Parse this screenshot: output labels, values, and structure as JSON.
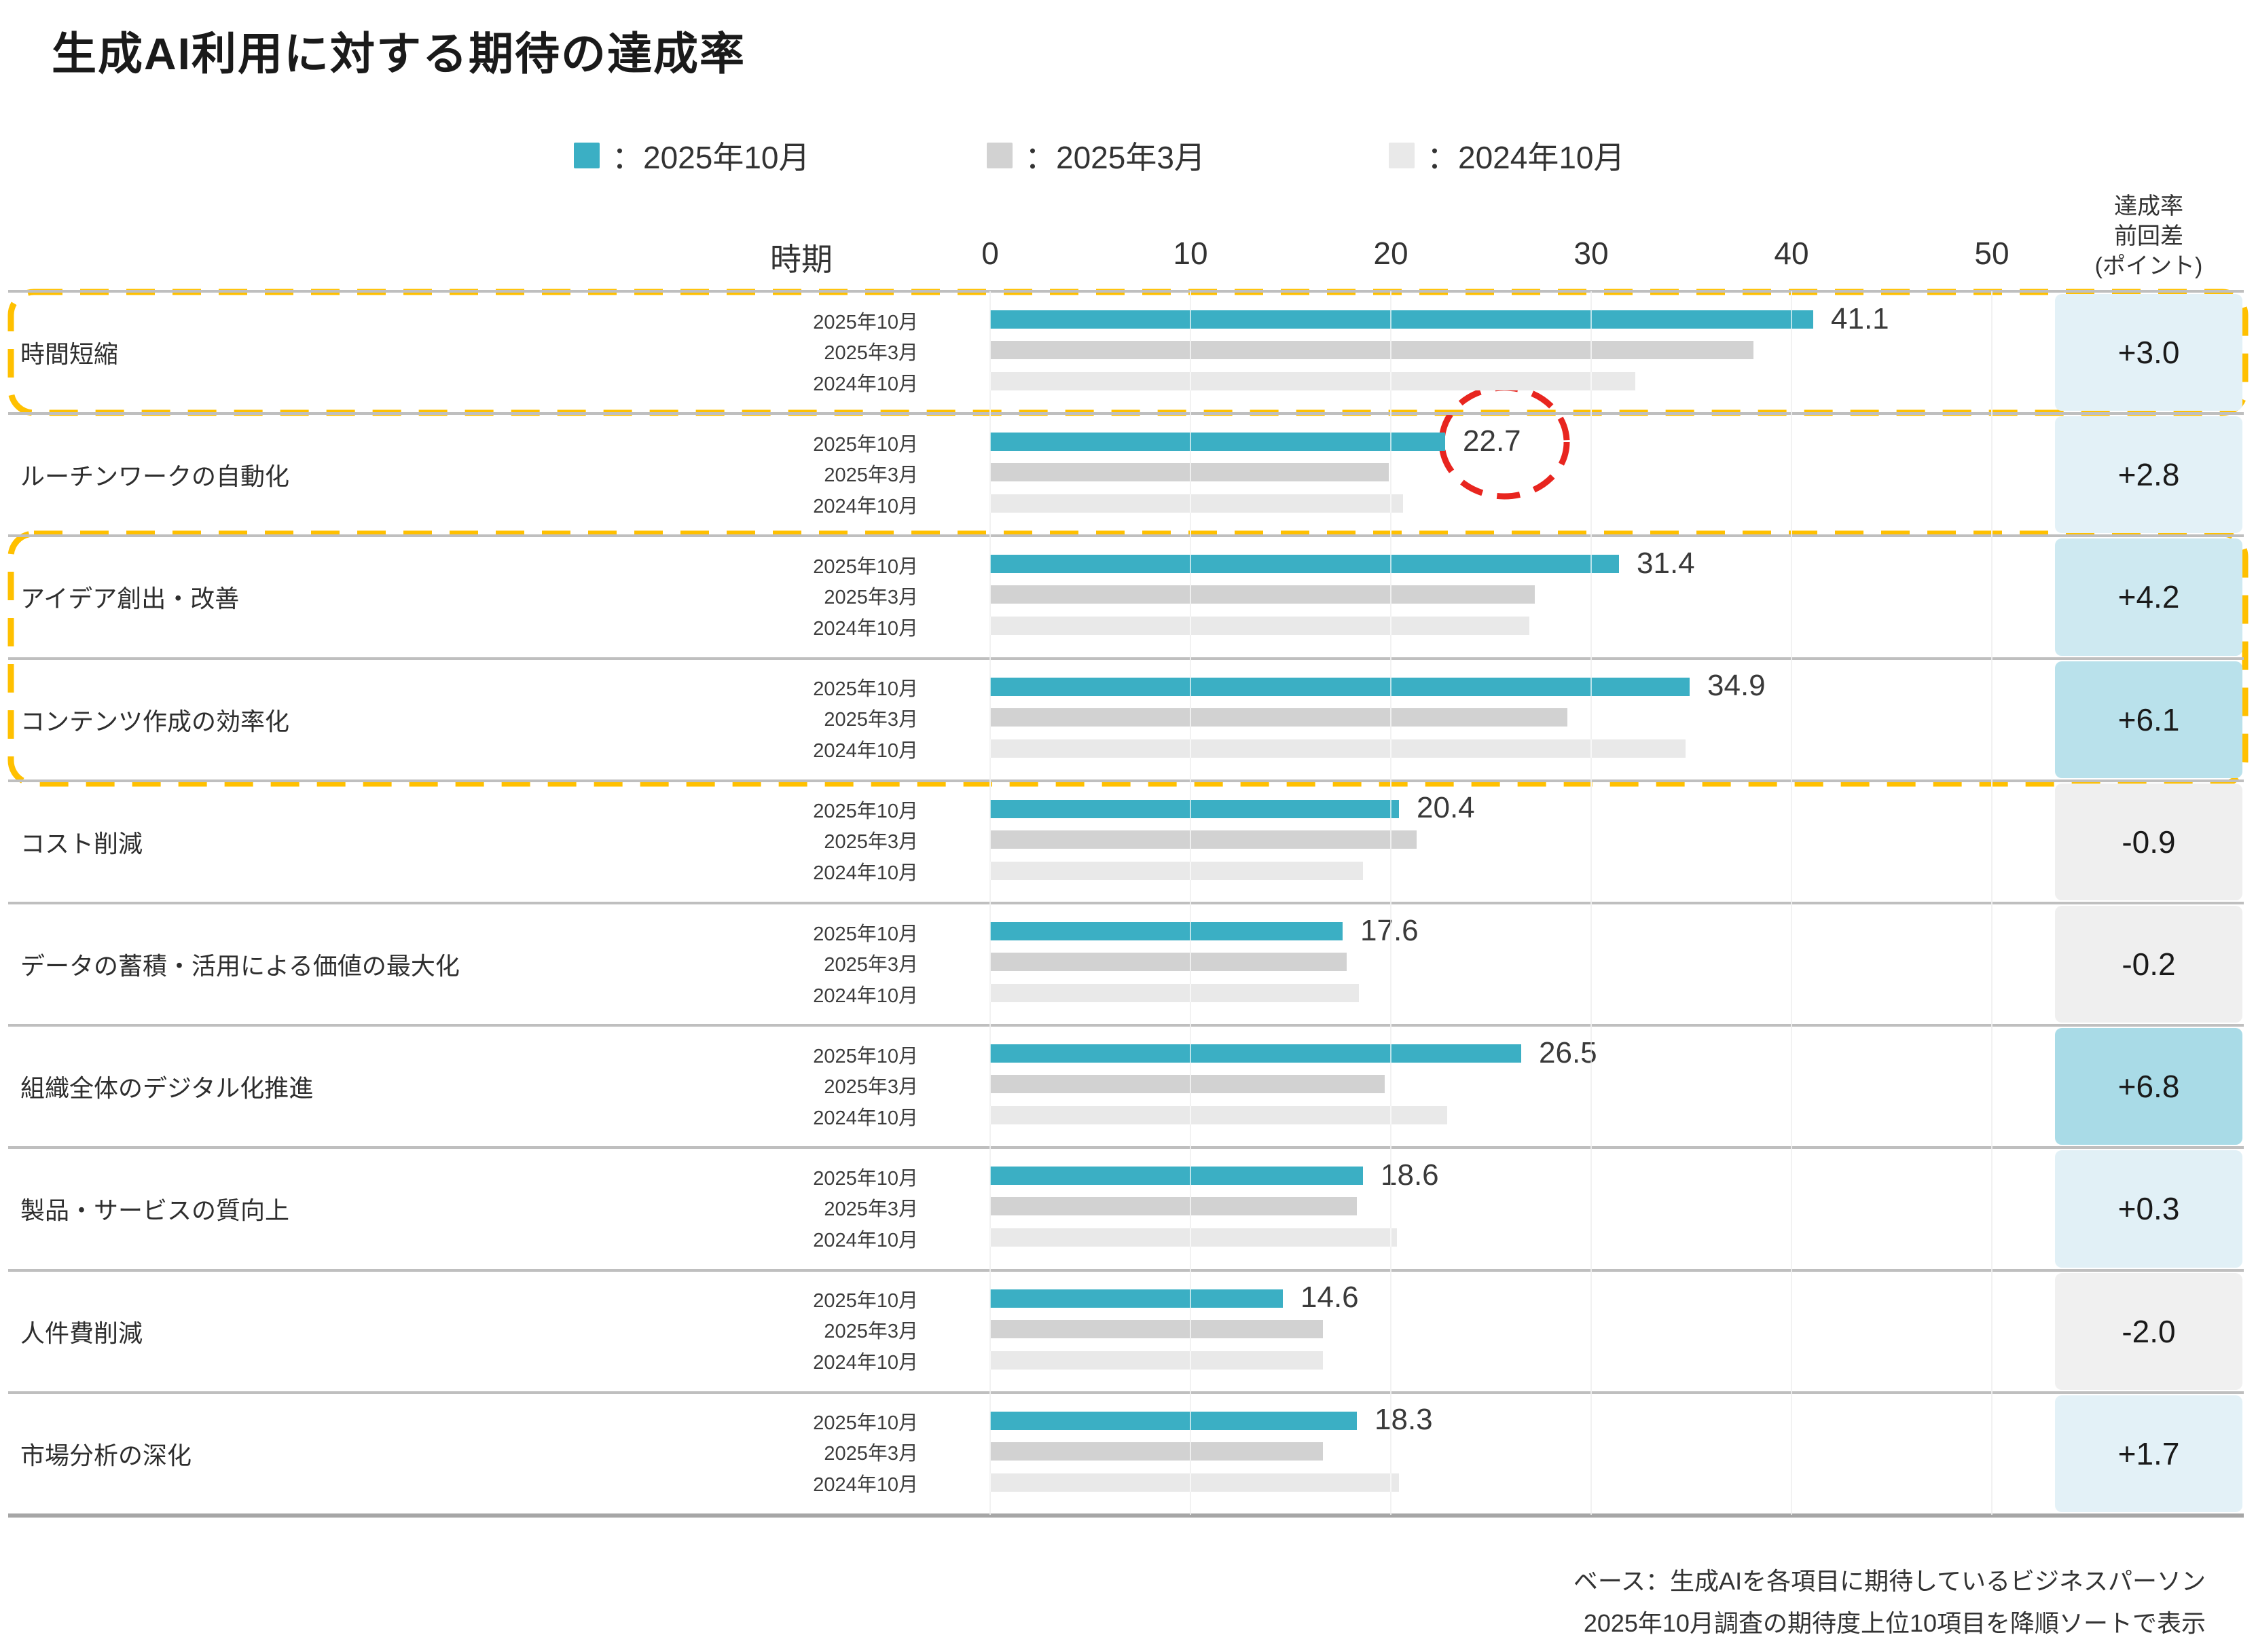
{
  "title": "生成AI利用に対する期待の達成率",
  "legend": [
    {
      "label": "：2025年10月",
      "color": "#3BAFC4"
    },
    {
      "label": "：2025年3月",
      "color": "#D2D2D2"
    },
    {
      "label": "：2024年10月",
      "color": "#E9E9E9"
    }
  ],
  "axis": {
    "period_header": "時期",
    "ticks": [
      "0",
      "10",
      "20",
      "30",
      "40",
      "50"
    ],
    "tick_values": [
      0,
      10,
      20,
      30,
      40,
      50
    ]
  },
  "diff_header_lines": [
    "達成率",
    "前回差",
    "(ポイント)"
  ],
  "chart_data": {
    "type": "bar",
    "orientation": "horizontal",
    "title": "生成AI利用に対する期待の達成率",
    "xlim": [
      0,
      50
    ],
    "grid": true,
    "legend_position": "top",
    "period_labels": [
      "2025年10月",
      "2025年3月",
      "2024年10月"
    ],
    "series_colors": [
      "#3BAFC4",
      "#D2D2D2",
      "#E9E9E9"
    ],
    "rows": [
      {
        "category": "時間短縮",
        "values": [
          41.1,
          38.1,
          32.2
        ],
        "label": "41.1",
        "diff": "+3.0",
        "diff_bg": "#E3F1F7"
      },
      {
        "category": "ルーチンワークの自動化",
        "values": [
          22.7,
          19.9,
          20.6
        ],
        "label": "22.7",
        "diff": "+2.8",
        "diff_bg": "#E3F1F7"
      },
      {
        "category": "アイデア創出・改善",
        "values": [
          31.4,
          27.2,
          26.9
        ],
        "label": "31.4",
        "diff": "+4.2",
        "diff_bg": "#CEE9F1"
      },
      {
        "category": "コンテンツ作成の効率化",
        "values": [
          34.9,
          28.8,
          34.7
        ],
        "label": "34.9",
        "diff": "+6.1",
        "diff_bg": "#B9E1EB"
      },
      {
        "category": "コスト削減",
        "values": [
          20.4,
          21.3,
          18.6
        ],
        "label": "20.4",
        "diff": "-0.9",
        "diff_bg": "#EFEFEF"
      },
      {
        "category": "データの蓄積・活用による価値の最大化",
        "values": [
          17.6,
          17.8,
          18.4
        ],
        "label": "17.6",
        "diff": "-0.2",
        "diff_bg": "#EFEFEF"
      },
      {
        "category": "組織全体のデジタル化推進",
        "values": [
          26.5,
          19.7,
          22.8
        ],
        "label": "26.5",
        "diff": "+6.8",
        "diff_bg": "#A9DBE7"
      },
      {
        "category": "製品・サービスの質向上",
        "values": [
          18.6,
          18.3,
          20.3
        ],
        "label": "18.6",
        "diff": "+0.3",
        "diff_bg": "#E1F0F6"
      },
      {
        "category": "人件費削減",
        "values": [
          14.6,
          16.6,
          16.6
        ],
        "label": "14.6",
        "diff": "-2.0",
        "diff_bg": "#F0F0F0"
      },
      {
        "category": "市場分析の深化",
        "values": [
          18.3,
          16.6,
          20.4
        ],
        "label": "18.3",
        "diff": "+1.7",
        "diff_bg": "#E3F1F7"
      }
    ],
    "annotations": {
      "yellow_dashed_boxes_row_indexes": [
        [
          0
        ],
        [
          2,
          3
        ]
      ],
      "red_dashed_circle_on_value_row": 1,
      "red_dashed_circle_on_diff_row": 8,
      "yellow_color": "#FFC000",
      "red_color": "#E8251F"
    }
  },
  "footnotes": [
    "ベース：生成AIを各項目に期待しているビジネスパーソン",
    "2025年10月調査の期待度上位10項目を降順ソートで表示"
  ]
}
